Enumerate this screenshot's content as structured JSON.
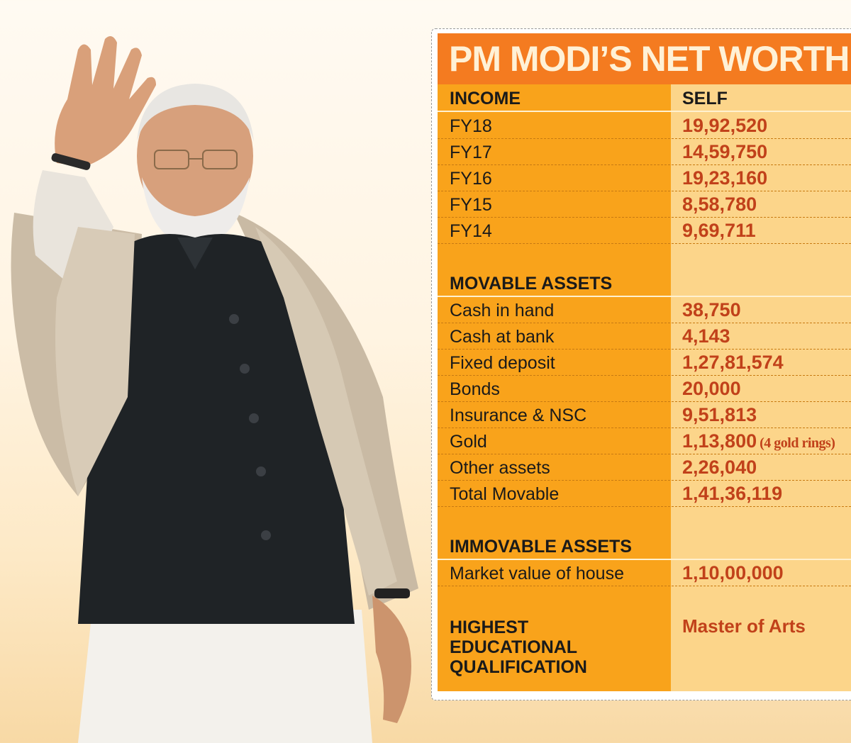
{
  "infographic": {
    "title": "PM MODI’S NET WORTH",
    "header": {
      "label": "INCOME",
      "column": "SELF"
    },
    "income": [
      {
        "label": "FY18",
        "value": "19,92,520"
      },
      {
        "label": "FY17",
        "value": "14,59,750"
      },
      {
        "label": "FY16",
        "value": "19,23,160"
      },
      {
        "label": "FY15",
        "value": "8,58,780"
      },
      {
        "label": "FY14",
        "value": "9,69,711"
      }
    ],
    "movable_heading": "MOVABLE ASSETS",
    "movable": [
      {
        "label": "Cash in hand",
        "value": "38,750"
      },
      {
        "label": "Cash at bank",
        "value": "4,143"
      },
      {
        "label": "Fixed deposit",
        "value": "1,27,81,574"
      },
      {
        "label": "Bonds",
        "value": "20,000"
      },
      {
        "label": "Insurance & NSC",
        "value": "9,51,813"
      },
      {
        "label": "Gold",
        "value": "1,13,800",
        "note": "(4 gold rings)"
      },
      {
        "label": "Other assets",
        "value": "2,26,040"
      },
      {
        "label": "Total Movable",
        "value": "1,41,36,119"
      }
    ],
    "immovable_heading": "IMMOVABLE ASSETS",
    "immovable": [
      {
        "label": "Market value of house",
        "value": "1,10,00,000"
      }
    ],
    "qualification": {
      "label_lines": [
        "HIGHEST",
        "EDUCATIONAL",
        "QUALIFICATION"
      ],
      "value": "Master of Arts"
    }
  },
  "colors": {
    "title_bar": "#f47b20",
    "left_column": "#f9a31b",
    "right_column": "#fcd58a",
    "value_text": "#c1411a"
  }
}
